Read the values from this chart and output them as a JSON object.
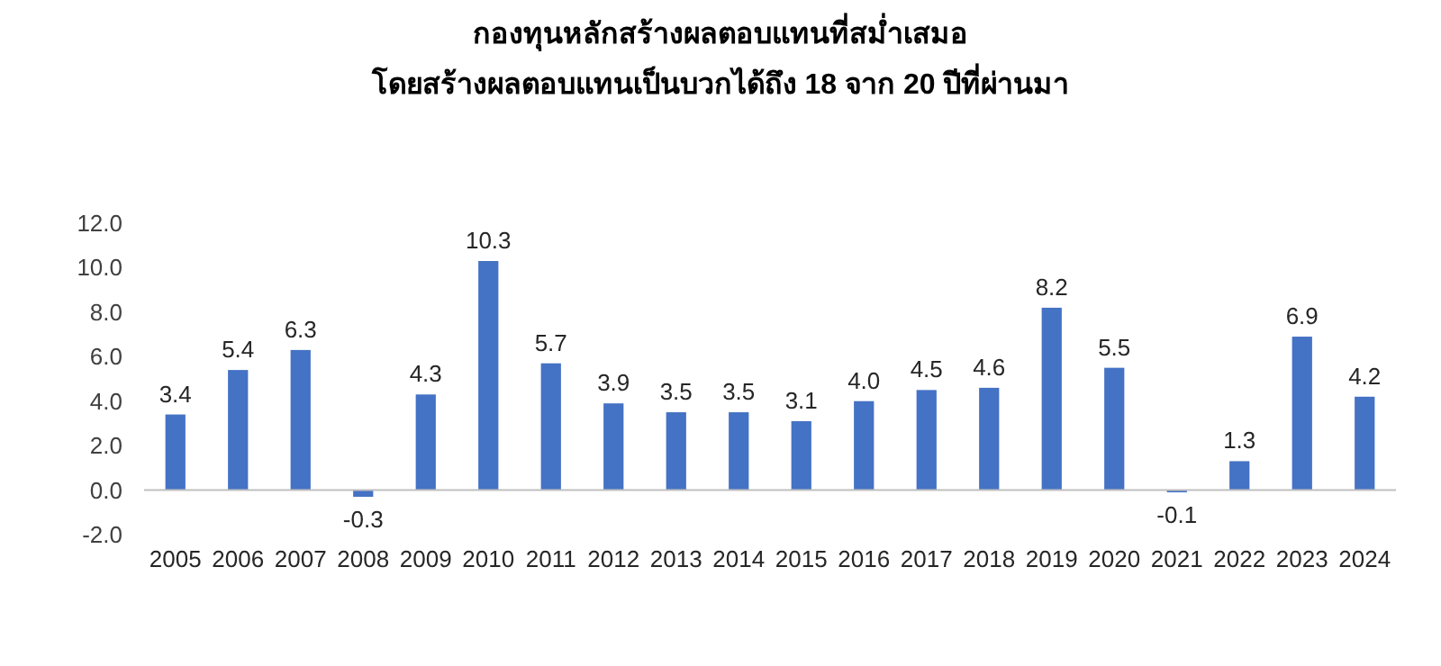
{
  "chart_data": {
    "type": "bar",
    "title": "กองทุนหลักสร้างผลตอบแทนที่สม่ำเสมอ",
    "subtitle": "โดยสร้างผลตอบแทนเป็นบวกได้ถึง 18 จาก 20 ปีที่ผ่านมา",
    "categories": [
      "2005",
      "2006",
      "2007",
      "2008",
      "2009",
      "2010",
      "2011",
      "2012",
      "2013",
      "2014",
      "2015",
      "2016",
      "2017",
      "2018",
      "2019",
      "2020",
      "2021",
      "2022",
      "2023",
      "2024"
    ],
    "values": [
      3.4,
      5.4,
      6.3,
      -0.3,
      4.3,
      10.3,
      5.7,
      3.9,
      3.5,
      3.5,
      3.1,
      4.0,
      4.5,
      4.6,
      8.2,
      5.5,
      -0.1,
      1.3,
      6.9,
      4.2
    ],
    "value_labels": [
      "3.4",
      "5.4",
      "6.3",
      "-0.3",
      "4.3",
      "10.3",
      "5.7",
      "3.9",
      "3.5",
      "3.5",
      "3.1",
      "4.0",
      "4.5",
      "4.6",
      "8.2",
      "5.5",
      "-0.1",
      "1.3",
      "6.9",
      "4.2"
    ],
    "color": "#4472c4",
    "ylim": [
      -2,
      12
    ],
    "yticks": [
      {
        "value": -2,
        "label": "-2.0"
      },
      {
        "value": 0,
        "label": "0.0"
      },
      {
        "value": 2,
        "label": "2.0"
      },
      {
        "value": 4,
        "label": "4.0"
      },
      {
        "value": 6,
        "label": "6.0"
      },
      {
        "value": 8,
        "label": "8.0"
      },
      {
        "value": 10,
        "label": "10.0"
      },
      {
        "value": 12,
        "label": "12.0"
      }
    ],
    "grid": false
  }
}
